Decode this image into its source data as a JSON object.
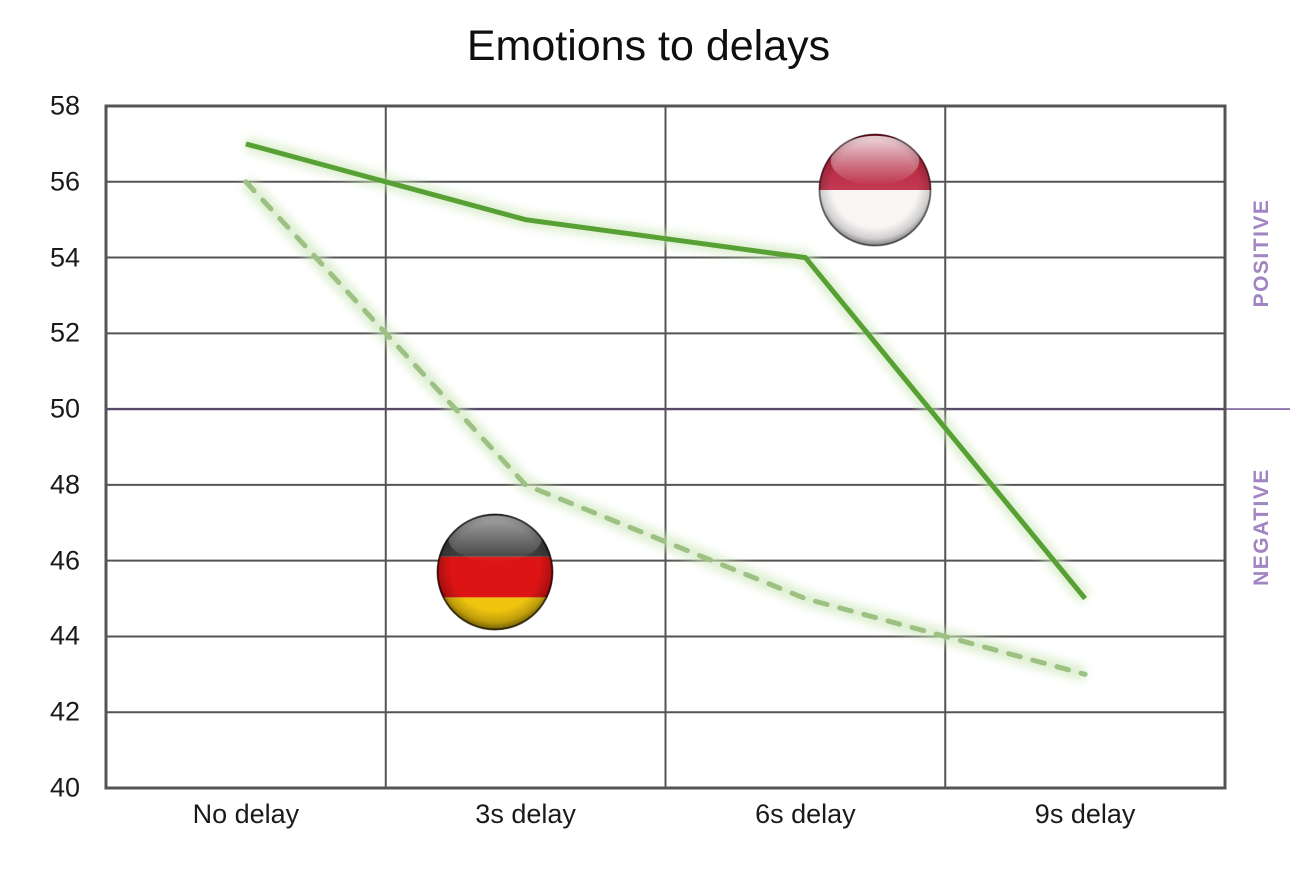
{
  "title": "Emotions to delays",
  "chart_data": {
    "type": "line",
    "title": "Emotions to delays",
    "categories": [
      "No delay",
      "3s delay",
      "6s delay",
      "9s delay"
    ],
    "series": [
      {
        "name": "Indonesia",
        "marker_icon": "indonesia-flag-icon",
        "line_style": "solid",
        "color": "#57a033",
        "values": [
          57,
          55,
          54,
          45
        ]
      },
      {
        "name": "Germany",
        "marker_icon": "germany-flag-icon",
        "line_style": "dashed",
        "color": "#9cc183",
        "values": [
          56,
          48,
          45,
          43
        ]
      }
    ],
    "ylim": [
      40,
      58
    ],
    "yticks": [
      58,
      56,
      54,
      52,
      50,
      48,
      46,
      44,
      42,
      40
    ],
    "xlabel": "",
    "ylabel": "",
    "grid": "both",
    "legend_position": "none",
    "divider_value": 50,
    "right_axis_labels": {
      "positive": "POSITIVE",
      "negative": "NEGATIVE"
    },
    "colors": {
      "grid": "#545454",
      "border": "#545454",
      "divider": "#574969",
      "divider_extension": "#7b5da2",
      "glow": "#cde6ba",
      "right_label": "#a184c2",
      "tick_text": "#1a1a1a",
      "title_text": "#0f0f0f"
    }
  }
}
